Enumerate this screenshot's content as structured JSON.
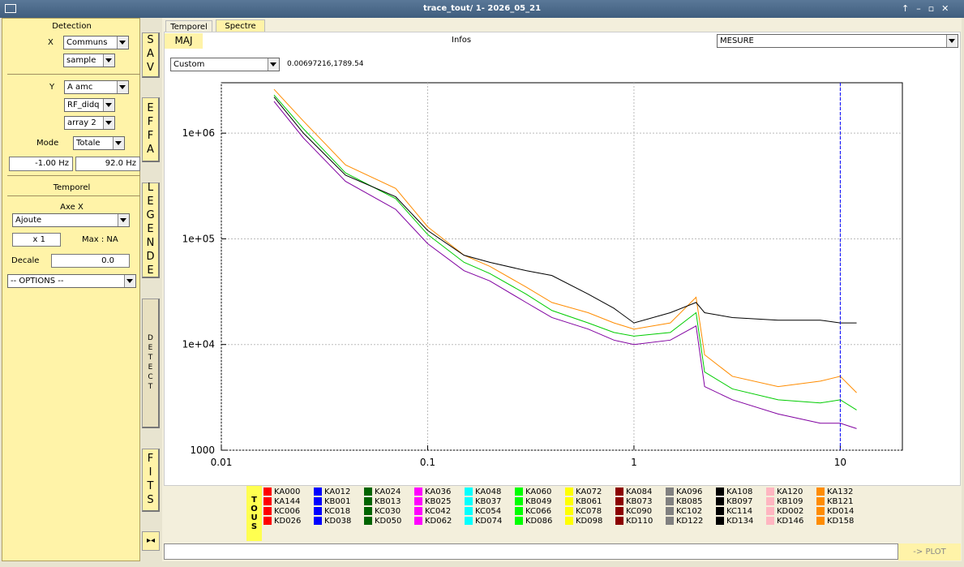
{
  "window": {
    "title": "trace_tout/ 1- 2026_05_21"
  },
  "left_panel": {
    "detection": {
      "heading": "Detection",
      "x_label": "X",
      "x_source": "Communs",
      "x_field": "sample",
      "y_label": "Y",
      "y_source": "A amc",
      "y_field": "RF_didq",
      "y_array": "array 2",
      "mode_label": "Mode",
      "mode": "Totale",
      "f_min": "-1.00 Hz",
      "f_max": "92.0 Hz"
    },
    "temporel": {
      "heading": "Temporel",
      "axe_label": "Axe X",
      "axe_mode": "Ajoute",
      "factor": "x 1",
      "max": "Max : NA",
      "decale_label": "Decale",
      "decale": "0.0",
      "options": "-- OPTIONS --"
    }
  },
  "side_buttons": [
    "SAV",
    "EFFA",
    "LEGENDE",
    "DETECT",
    "FITS"
  ],
  "tabs": [
    "Temporel",
    "Spectre"
  ],
  "toolbar": {
    "maj": "MAJ",
    "infos": "Infos",
    "mesure": "MESURE",
    "range_mode": "Custom",
    "range": "0.00697216,1789.54"
  },
  "plot": {
    "type": "line",
    "log_x": true,
    "log_y": true,
    "grid": true,
    "xlim": [
      0.01,
      20
    ],
    "ylim": [
      1000,
      3000000
    ],
    "xticks": [
      0.01,
      0.1,
      1,
      10
    ],
    "yticks": [
      {
        "value": 1000,
        "label": "1000"
      },
      {
        "value": 10000,
        "label": "1e+04"
      },
      {
        "value": 100000,
        "label": "1e+05"
      },
      {
        "value": 1000000,
        "label": "1e+06"
      }
    ],
    "cursor_x": 10,
    "x": [
      0.018,
      0.025,
      0.04,
      0.07,
      0.1,
      0.15,
      0.2,
      0.3,
      0.4,
      0.6,
      0.8,
      1,
      1.5,
      2,
      2.2,
      3,
      5,
      8,
      10,
      12
    ],
    "traces": [
      {
        "color": "#ff8c00",
        "values": [
          2600000,
          1300000,
          500000,
          300000,
          130000,
          70000,
          55000,
          35000,
          25000,
          20000,
          16000,
          14000,
          16000,
          28000,
          8000,
          5000,
          4000,
          4500,
          5000,
          3500
        ]
      },
      {
        "color": "#00cc00",
        "values": [
          2300000,
          1100000,
          420000,
          240000,
          110000,
          60000,
          47000,
          30000,
          21000,
          16000,
          13000,
          12000,
          13000,
          20000,
          5500,
          3800,
          3000,
          2800,
          3000,
          2400
        ]
      },
      {
        "color": "#8000a0",
        "values": [
          2000000,
          900000,
          350000,
          190000,
          90000,
          50000,
          40000,
          25000,
          18000,
          14000,
          11000,
          10000,
          11000,
          15000,
          4000,
          3000,
          2200,
          1800,
          1800,
          1600
        ]
      },
      {
        "color": "#000000",
        "values": [
          2200000,
          1000000,
          400000,
          250000,
          120000,
          70000,
          60000,
          50000,
          45000,
          30000,
          22000,
          16000,
          20000,
          25000,
          20000,
          18000,
          17000,
          17000,
          16000,
          16000
        ]
      }
    ]
  },
  "legend": {
    "all": "TOUS",
    "columns": [
      {
        "color": "#ff0000",
        "names": [
          "KA000",
          "KA144",
          "KC006",
          "KD026"
        ]
      },
      {
        "color": "#0000ff",
        "names": [
          "KA012",
          "KB001",
          "KC018",
          "KD038"
        ]
      },
      {
        "color": "#006400",
        "names": [
          "KA024",
          "KB013",
          "KC030",
          "KD050"
        ]
      },
      {
        "color": "#ff00ff",
        "names": [
          "KA036",
          "KB025",
          "KC042",
          "KD062"
        ]
      },
      {
        "color": "#00ffff",
        "names": [
          "KA048",
          "KB037",
          "KC054",
          "KD074"
        ]
      },
      {
        "color": "#00ff00",
        "names": [
          "KA060",
          "KB049",
          "KC066",
          "KD086"
        ]
      },
      {
        "color": "#ffff00",
        "names": [
          "KA072",
          "KB061",
          "KC078",
          "KD098"
        ]
      },
      {
        "color": "#8b0000",
        "names": [
          "KA084",
          "KB073",
          "KC090",
          "KD110"
        ]
      },
      {
        "color": "#808080",
        "names": [
          "KA096",
          "KB085",
          "KC102",
          "KD122"
        ]
      },
      {
        "color": "#000000",
        "names": [
          "KA108",
          "KB097",
          "KC114",
          "KD134"
        ]
      },
      {
        "color": "#ffb6c1",
        "names": [
          "KA120",
          "KB109",
          "KD002",
          "KD146"
        ]
      },
      {
        "color": "#ff8c00",
        "names": [
          "KA132",
          "KB121",
          "KD014",
          "KD158"
        ]
      }
    ]
  },
  "bottom": {
    "plot_button": "-> PLOT"
  }
}
